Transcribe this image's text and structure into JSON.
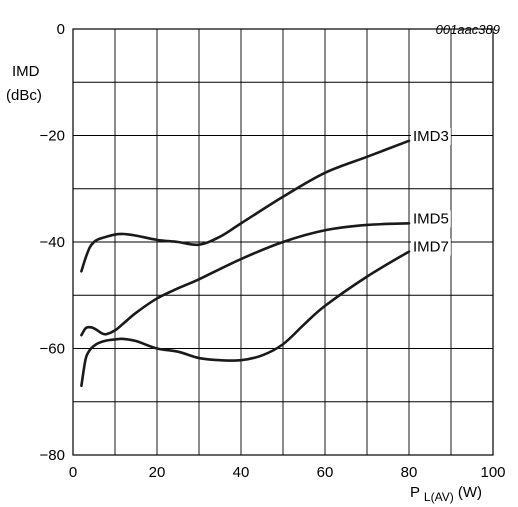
{
  "chart_data": {
    "type": "line",
    "figure_code": "001aac389",
    "ylabel_line1": "IMD",
    "ylabel_line2": "(dBc)",
    "xlabel_main": "P",
    "xlabel_sub": "L(AV)",
    "xlabel_unit": " (W)",
    "xlim": [
      0,
      100
    ],
    "ylim": [
      -80,
      0
    ],
    "xticks": [
      0,
      20,
      40,
      60,
      80,
      100
    ],
    "xtick_labels": [
      "0",
      "20",
      "40",
      "60",
      "80",
      "100"
    ],
    "yticks": [
      0,
      -20,
      -40,
      -60,
      -80
    ],
    "ytick_labels": [
      "0",
      "−20",
      "−40",
      "−60",
      "−80"
    ],
    "grid": true,
    "series": [
      {
        "name": "IMD3",
        "x": [
          2,
          3,
          4,
          5,
          6,
          8,
          10,
          12,
          15,
          20,
          25,
          30,
          35,
          40,
          50,
          60,
          70,
          80
        ],
        "y": [
          -45.5,
          -43,
          -41,
          -40,
          -39.5,
          -39,
          -38.6,
          -38.5,
          -38.8,
          -39.6,
          -40,
          -40.5,
          -39,
          -36.5,
          -31.5,
          -27,
          -24,
          -21
        ]
      },
      {
        "name": "IMD5",
        "x": [
          2,
          3,
          4,
          5,
          6,
          7,
          8,
          10,
          12,
          15,
          20,
          25,
          30,
          40,
          50,
          60,
          70,
          80
        ],
        "y": [
          -57.5,
          -56.2,
          -56.0,
          -56.2,
          -56.7,
          -57.2,
          -57.3,
          -56.6,
          -55.3,
          -53.3,
          -50.6,
          -48.7,
          -47,
          -43.2,
          -40,
          -37.8,
          -36.8,
          -36.5
        ]
      },
      {
        "name": "IMD7",
        "x": [
          2,
          3,
          4,
          5,
          6,
          8,
          10,
          12,
          15,
          20,
          25,
          30,
          35,
          40,
          45,
          50,
          55,
          60,
          70,
          80
        ],
        "y": [
          -67,
          -62,
          -60.3,
          -59.5,
          -59,
          -58.5,
          -58.3,
          -58.2,
          -58.6,
          -60,
          -60.6,
          -61.8,
          -62.2,
          -62.2,
          -61.3,
          -59.2,
          -55.5,
          -52,
          -46.5,
          -41.8
        ]
      }
    ]
  }
}
